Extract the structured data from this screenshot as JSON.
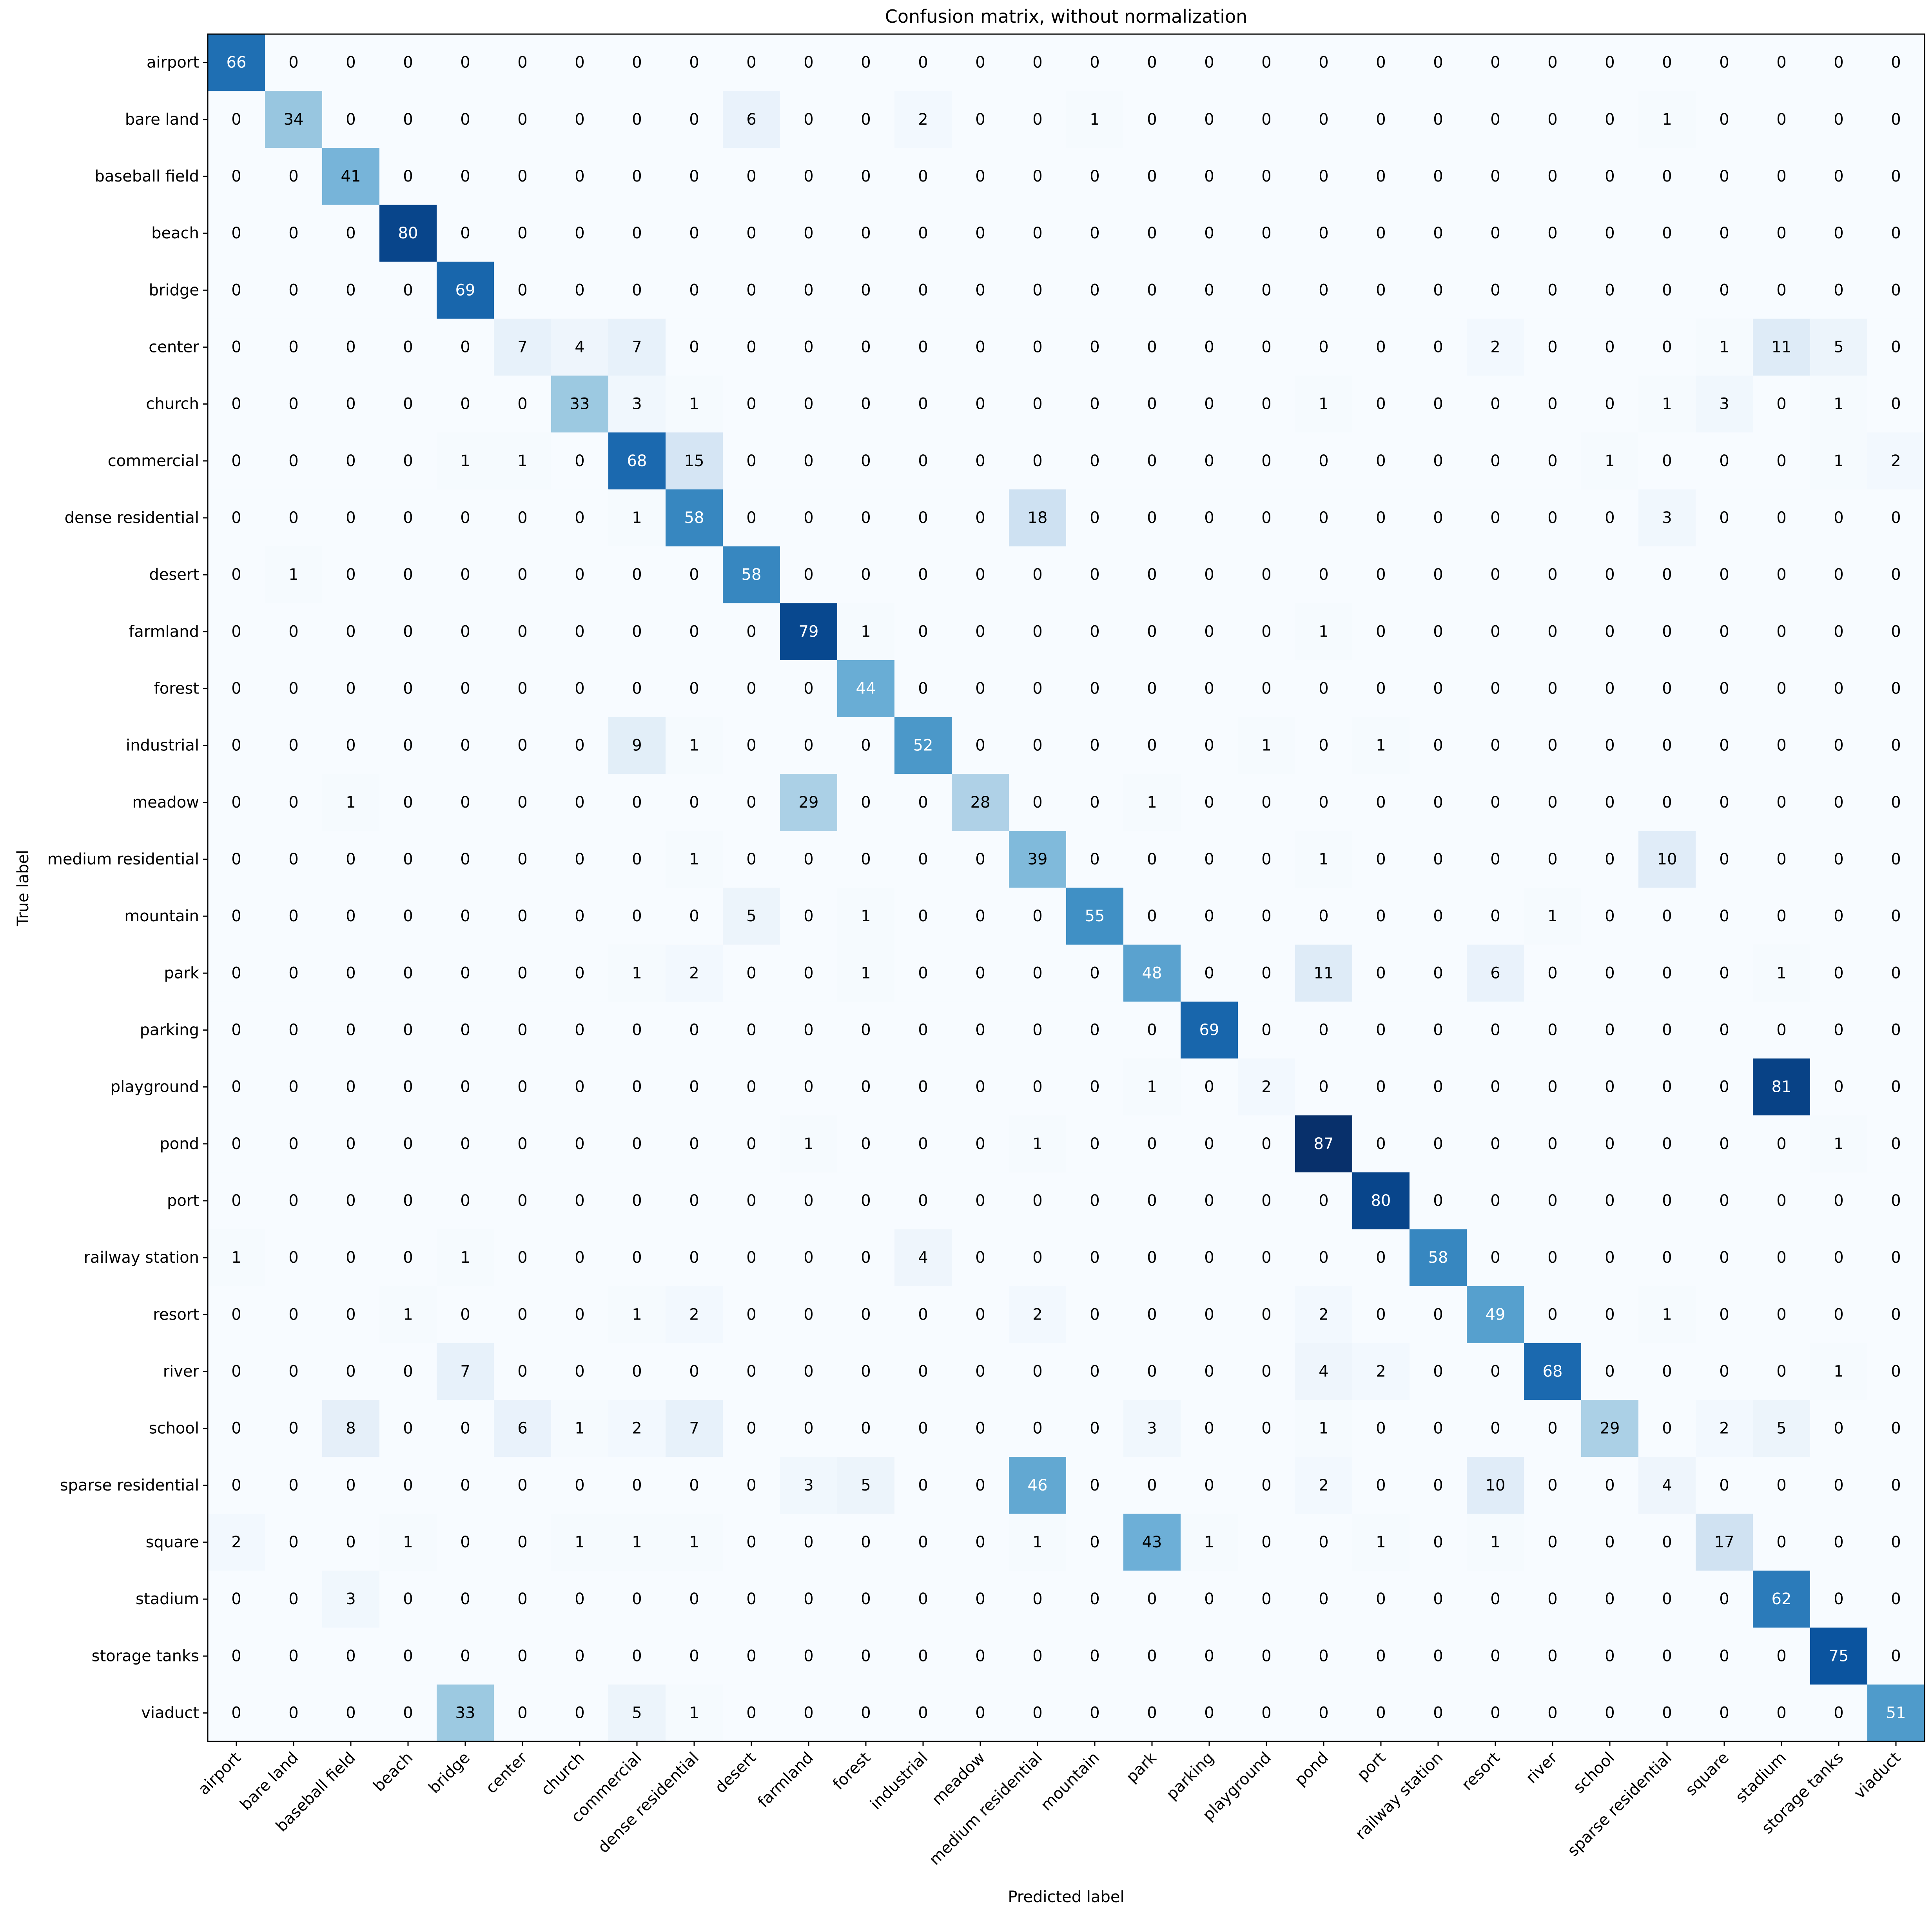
{
  "chart_data": {
    "type": "heatmap",
    "title": "Confusion matrix, without normalization",
    "xlabel": "Predicted label",
    "ylabel": "True label",
    "colormap": "Blues",
    "colormap_stops": [
      "#f7fbff",
      "#deebf7",
      "#c6dbef",
      "#9ecae1",
      "#6baed6",
      "#4292c6",
      "#2171b5",
      "#08519c",
      "#08306b"
    ],
    "text_color_dark": "#000000",
    "text_color_light": "#ffffff",
    "grid": false,
    "labels": [
      "airport",
      "bare land",
      "baseball field",
      "beach",
      "bridge",
      "center",
      "church",
      "commercial",
      "dense residential",
      "desert",
      "farmland",
      "forest",
      "industrial",
      "meadow",
      "medium residential",
      "mountain",
      "park",
      "parking",
      "playground",
      "pond",
      "port",
      "railway station",
      "resort",
      "river",
      "school",
      "sparse residential",
      "square",
      "stadium",
      "storage tanks",
      "viaduct"
    ],
    "matrix": [
      [
        66,
        0,
        0,
        0,
        0,
        0,
        0,
        0,
        0,
        0,
        0,
        0,
        0,
        0,
        0,
        0,
        0,
        0,
        0,
        0,
        0,
        0,
        0,
        0,
        0,
        0,
        0,
        0,
        0,
        0
      ],
      [
        0,
        34,
        0,
        0,
        0,
        0,
        0,
        0,
        0,
        6,
        0,
        0,
        2,
        0,
        0,
        1,
        0,
        0,
        0,
        0,
        0,
        0,
        0,
        0,
        0,
        1,
        0,
        0,
        0,
        0
      ],
      [
        0,
        0,
        41,
        0,
        0,
        0,
        0,
        0,
        0,
        0,
        0,
        0,
        0,
        0,
        0,
        0,
        0,
        0,
        0,
        0,
        0,
        0,
        0,
        0,
        0,
        0,
        0,
        0,
        0,
        0
      ],
      [
        0,
        0,
        0,
        80,
        0,
        0,
        0,
        0,
        0,
        0,
        0,
        0,
        0,
        0,
        0,
        0,
        0,
        0,
        0,
        0,
        0,
        0,
        0,
        0,
        0,
        0,
        0,
        0,
        0,
        0
      ],
      [
        0,
        0,
        0,
        0,
        69,
        0,
        0,
        0,
        0,
        0,
        0,
        0,
        0,
        0,
        0,
        0,
        0,
        0,
        0,
        0,
        0,
        0,
        0,
        0,
        0,
        0,
        0,
        0,
        0,
        0
      ],
      [
        0,
        0,
        0,
        0,
        0,
        7,
        4,
        7,
        0,
        0,
        0,
        0,
        0,
        0,
        0,
        0,
        0,
        0,
        0,
        0,
        0,
        0,
        2,
        0,
        0,
        0,
        1,
        11,
        5,
        0
      ],
      [
        0,
        0,
        0,
        0,
        0,
        0,
        33,
        3,
        1,
        0,
        0,
        0,
        0,
        0,
        0,
        0,
        0,
        0,
        0,
        1,
        0,
        0,
        0,
        0,
        0,
        1,
        3,
        0,
        1,
        0
      ],
      [
        0,
        0,
        0,
        0,
        1,
        1,
        0,
        68,
        15,
        0,
        0,
        0,
        0,
        0,
        0,
        0,
        0,
        0,
        0,
        0,
        0,
        0,
        0,
        0,
        1,
        0,
        0,
        0,
        1,
        2
      ],
      [
        0,
        0,
        0,
        0,
        0,
        0,
        0,
        1,
        58,
        0,
        0,
        0,
        0,
        0,
        18,
        0,
        0,
        0,
        0,
        0,
        0,
        0,
        0,
        0,
        0,
        3,
        0,
        0,
        0,
        0
      ],
      [
        0,
        1,
        0,
        0,
        0,
        0,
        0,
        0,
        0,
        58,
        0,
        0,
        0,
        0,
        0,
        0,
        0,
        0,
        0,
        0,
        0,
        0,
        0,
        0,
        0,
        0,
        0,
        0,
        0,
        0
      ],
      [
        0,
        0,
        0,
        0,
        0,
        0,
        0,
        0,
        0,
        0,
        79,
        1,
        0,
        0,
        0,
        0,
        0,
        0,
        0,
        1,
        0,
        0,
        0,
        0,
        0,
        0,
        0,
        0,
        0,
        0
      ],
      [
        0,
        0,
        0,
        0,
        0,
        0,
        0,
        0,
        0,
        0,
        0,
        44,
        0,
        0,
        0,
        0,
        0,
        0,
        0,
        0,
        0,
        0,
        0,
        0,
        0,
        0,
        0,
        0,
        0,
        0
      ],
      [
        0,
        0,
        0,
        0,
        0,
        0,
        0,
        9,
        1,
        0,
        0,
        0,
        52,
        0,
        0,
        0,
        0,
        0,
        1,
        0,
        1,
        0,
        0,
        0,
        0,
        0,
        0,
        0,
        0,
        0
      ],
      [
        0,
        0,
        1,
        0,
        0,
        0,
        0,
        0,
        0,
        0,
        29,
        0,
        0,
        28,
        0,
        0,
        1,
        0,
        0,
        0,
        0,
        0,
        0,
        0,
        0,
        0,
        0,
        0,
        0,
        0
      ],
      [
        0,
        0,
        0,
        0,
        0,
        0,
        0,
        0,
        1,
        0,
        0,
        0,
        0,
        0,
        39,
        0,
        0,
        0,
        0,
        1,
        0,
        0,
        0,
        0,
        0,
        10,
        0,
        0,
        0,
        0
      ],
      [
        0,
        0,
        0,
        0,
        0,
        0,
        0,
        0,
        0,
        5,
        0,
        1,
        0,
        0,
        0,
        55,
        0,
        0,
        0,
        0,
        0,
        0,
        0,
        1,
        0,
        0,
        0,
        0,
        0,
        0
      ],
      [
        0,
        0,
        0,
        0,
        0,
        0,
        0,
        1,
        2,
        0,
        0,
        1,
        0,
        0,
        0,
        0,
        48,
        0,
        0,
        11,
        0,
        0,
        6,
        0,
        0,
        0,
        0,
        1,
        0,
        0
      ],
      [
        0,
        0,
        0,
        0,
        0,
        0,
        0,
        0,
        0,
        0,
        0,
        0,
        0,
        0,
        0,
        0,
        0,
        69,
        0,
        0,
        0,
        0,
        0,
        0,
        0,
        0,
        0,
        0,
        0,
        0
      ],
      [
        0,
        0,
        0,
        0,
        0,
        0,
        0,
        0,
        0,
        0,
        0,
        0,
        0,
        0,
        0,
        0,
        1,
        0,
        2,
        0,
        0,
        0,
        0,
        0,
        0,
        0,
        0,
        81,
        0,
        0
      ],
      [
        0,
        0,
        0,
        0,
        0,
        0,
        0,
        0,
        0,
        0,
        1,
        0,
        0,
        0,
        1,
        0,
        0,
        0,
        0,
        87,
        0,
        0,
        0,
        0,
        0,
        0,
        0,
        0,
        1,
        0
      ],
      [
        0,
        0,
        0,
        0,
        0,
        0,
        0,
        0,
        0,
        0,
        0,
        0,
        0,
        0,
        0,
        0,
        0,
        0,
        0,
        0,
        80,
        0,
        0,
        0,
        0,
        0,
        0,
        0,
        0,
        0
      ],
      [
        1,
        0,
        0,
        0,
        1,
        0,
        0,
        0,
        0,
        0,
        0,
        0,
        4,
        0,
        0,
        0,
        0,
        0,
        0,
        0,
        0,
        58,
        0,
        0,
        0,
        0,
        0,
        0,
        0,
        0
      ],
      [
        0,
        0,
        0,
        1,
        0,
        0,
        0,
        1,
        2,
        0,
        0,
        0,
        0,
        0,
        2,
        0,
        0,
        0,
        0,
        2,
        0,
        0,
        49,
        0,
        0,
        1,
        0,
        0,
        0,
        0
      ],
      [
        0,
        0,
        0,
        0,
        7,
        0,
        0,
        0,
        0,
        0,
        0,
        0,
        0,
        0,
        0,
        0,
        0,
        0,
        0,
        4,
        2,
        0,
        0,
        68,
        0,
        0,
        0,
        0,
        1,
        0
      ],
      [
        0,
        0,
        8,
        0,
        0,
        6,
        1,
        2,
        7,
        0,
        0,
        0,
        0,
        0,
        0,
        0,
        3,
        0,
        0,
        1,
        0,
        0,
        0,
        0,
        29,
        0,
        2,
        5,
        0,
        0
      ],
      [
        0,
        0,
        0,
        0,
        0,
        0,
        0,
        0,
        0,
        0,
        3,
        5,
        0,
        0,
        46,
        0,
        0,
        0,
        0,
        2,
        0,
        0,
        10,
        0,
        0,
        4,
        0,
        0,
        0,
        0
      ],
      [
        2,
        0,
        0,
        1,
        0,
        0,
        1,
        1,
        1,
        0,
        0,
        0,
        0,
        0,
        1,
        0,
        43,
        1,
        0,
        0,
        1,
        0,
        1,
        0,
        0,
        0,
        17,
        0,
        0,
        0
      ],
      [
        0,
        0,
        3,
        0,
        0,
        0,
        0,
        0,
        0,
        0,
        0,
        0,
        0,
        0,
        0,
        0,
        0,
        0,
        0,
        0,
        0,
        0,
        0,
        0,
        0,
        0,
        0,
        62,
        0,
        0
      ],
      [
        0,
        0,
        0,
        0,
        0,
        0,
        0,
        0,
        0,
        0,
        0,
        0,
        0,
        0,
        0,
        0,
        0,
        0,
        0,
        0,
        0,
        0,
        0,
        0,
        0,
        0,
        0,
        0,
        75,
        0
      ],
      [
        0,
        0,
        0,
        0,
        33,
        0,
        0,
        5,
        1,
        0,
        0,
        0,
        0,
        0,
        0,
        0,
        0,
        0,
        0,
        0,
        0,
        0,
        0,
        0,
        0,
        0,
        0,
        0,
        0,
        51
      ]
    ]
  }
}
